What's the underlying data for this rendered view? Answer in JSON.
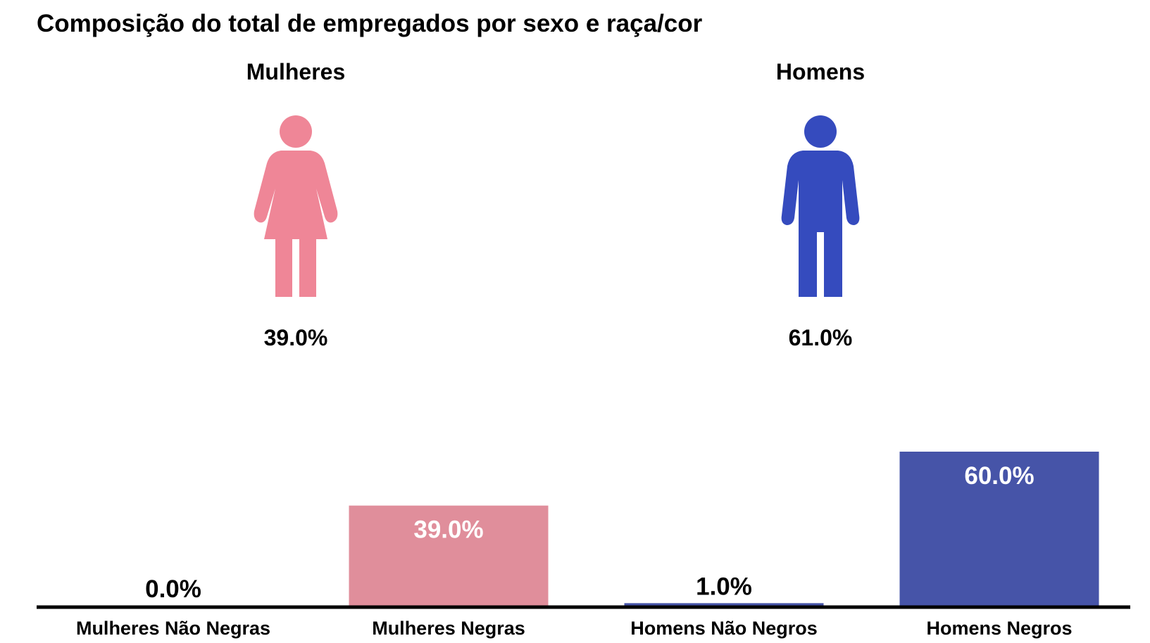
{
  "title": "Composição do total de empregados por sexo e raça/cor",
  "groups": {
    "women": {
      "label": "Mulheres",
      "percent": "39.0%",
      "color": "#ef8697",
      "icon": "woman-icon"
    },
    "men": {
      "label": "Homens",
      "percent": "61.0%",
      "color": "#354bbe",
      "icon": "man-icon"
    }
  },
  "chart_data": {
    "type": "bar",
    "title": "",
    "categories": [
      "Mulheres Não Negras",
      "Mulheres Negras",
      "Homens Não Negros",
      "Homens Negros"
    ],
    "values": [
      0.0,
      39.0,
      1.0,
      60.0
    ],
    "data_labels": [
      "0.0%",
      "39.0%",
      "1.0%",
      "60.0%"
    ],
    "colors": [
      "#e08e9b",
      "#e08e9b",
      "#4654a8",
      "#4654a8"
    ],
    "xlabel": "",
    "ylabel": "",
    "ylim": [
      0,
      100
    ],
    "grid": false,
    "legend": "none"
  }
}
